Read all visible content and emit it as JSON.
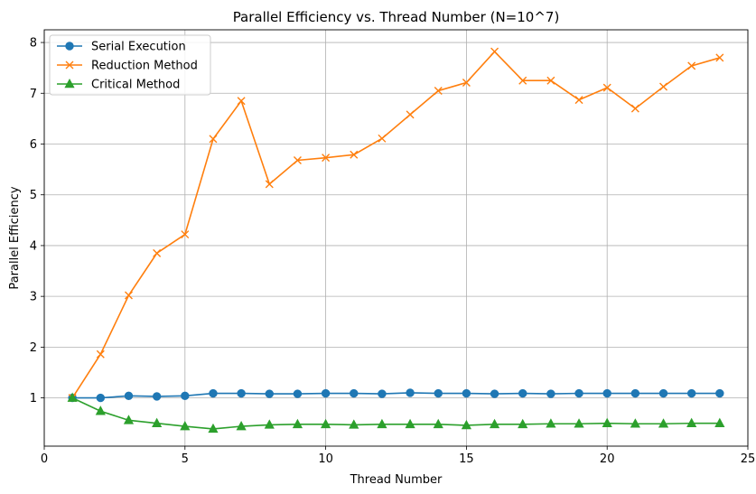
{
  "chart_data": {
    "type": "line",
    "title": "Parallel Efficiency vs. Thread Number (N=10^7)",
    "xlabel": "Thread Number",
    "ylabel": "Parallel Efficiency",
    "xlim": [
      0,
      25
    ],
    "ylim": [
      0.05,
      8.25
    ],
    "xticks": [
      0,
      5,
      10,
      15,
      20,
      25
    ],
    "yticks": [
      1,
      2,
      3,
      4,
      5,
      6,
      7,
      8
    ],
    "grid": true,
    "legend_position": "upper-left",
    "x": [
      1,
      2,
      3,
      4,
      5,
      6,
      7,
      8,
      9,
      10,
      11,
      12,
      13,
      14,
      15,
      16,
      17,
      18,
      19,
      20,
      21,
      22,
      23,
      24
    ],
    "series": [
      {
        "name": "Serial Execution",
        "color": "#1f77b4",
        "marker": "circle",
        "values": [
          1.0,
          1.0,
          1.04,
          1.03,
          1.04,
          1.09,
          1.09,
          1.08,
          1.08,
          1.09,
          1.09,
          1.08,
          1.1,
          1.09,
          1.09,
          1.08,
          1.09,
          1.08,
          1.09,
          1.09,
          1.09,
          1.09,
          1.09,
          1.09
        ]
      },
      {
        "name": "Reduction Method",
        "color": "#ff7f0e",
        "marker": "x",
        "values": [
          1.0,
          1.86,
          3.02,
          3.85,
          4.22,
          6.1,
          6.85,
          5.21,
          5.68,
          5.73,
          5.79,
          6.11,
          6.58,
          7.05,
          7.21,
          7.82,
          7.25,
          7.25,
          6.87,
          7.11,
          6.7,
          7.13,
          7.54,
          7.7
        ]
      },
      {
        "name": "Critical Method",
        "color": "#2ca02c",
        "marker": "triangle",
        "values": [
          1.0,
          0.74,
          0.56,
          0.5,
          0.44,
          0.39,
          0.44,
          0.47,
          0.48,
          0.48,
          0.47,
          0.48,
          0.48,
          0.48,
          0.46,
          0.48,
          0.48,
          0.49,
          0.49,
          0.5,
          0.49,
          0.49,
          0.5,
          0.5
        ]
      }
    ]
  }
}
